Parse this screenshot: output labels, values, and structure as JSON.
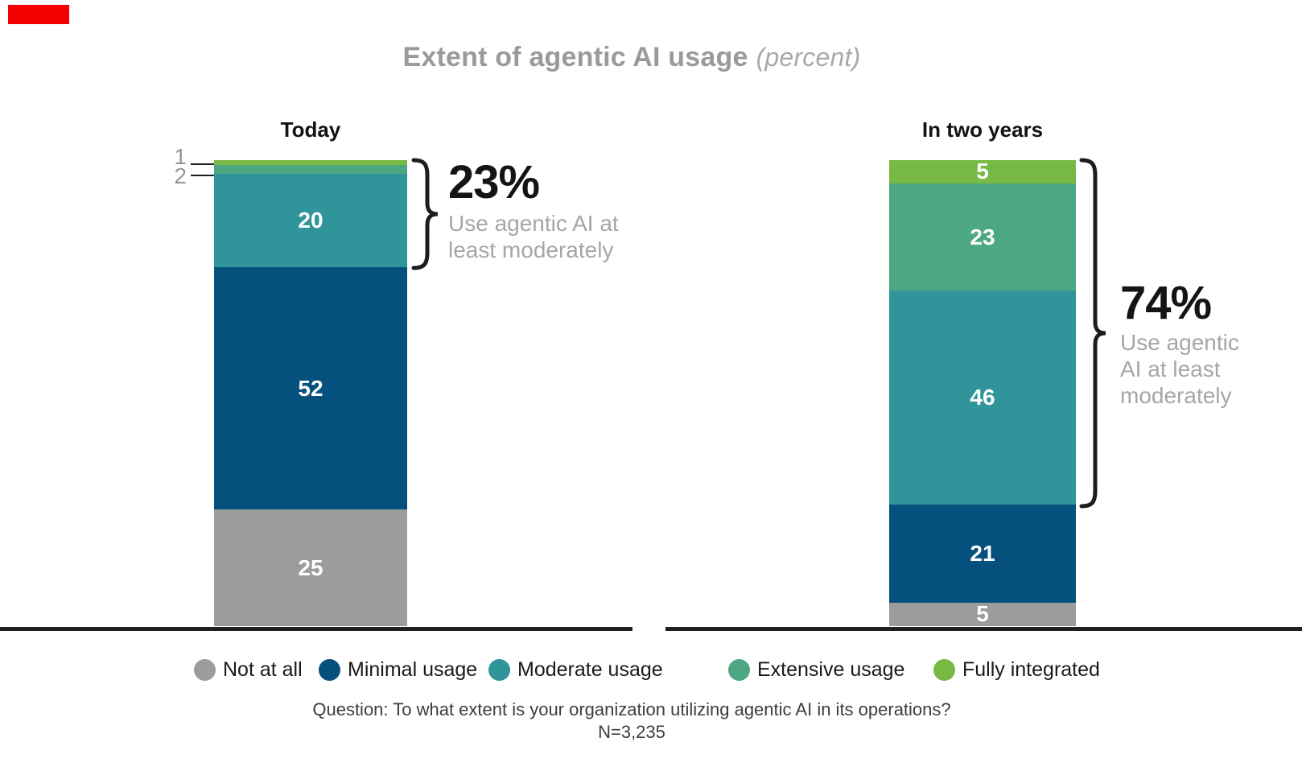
{
  "accent": {
    "color": "#f30000"
  },
  "title": {
    "main": "Extent of agentic AI usage",
    "suffix": "(percent)"
  },
  "chart_data": {
    "type": "bar",
    "subtype": "stacked-column",
    "unit": "percent",
    "stacked": true,
    "ylim": [
      0,
      100
    ],
    "grid": false,
    "axis": "baseline-only",
    "data_labels": "inside-white",
    "legend_position": "bottom",
    "categories": [
      "Today",
      "In two years"
    ],
    "series": [
      {
        "name": "Not at all",
        "key": "not_at_all",
        "color": "#9b9c9e",
        "values": [
          25,
          5
        ]
      },
      {
        "name": "Minimal usage",
        "key": "minimal",
        "color": "#05507d",
        "values": [
          52,
          21
        ]
      },
      {
        "name": "Moderate usage",
        "key": "moderate",
        "color": "#2f959b",
        "values": [
          20,
          46
        ]
      },
      {
        "name": "Extensive usage",
        "key": "extensive",
        "color": "#4ea783",
        "values": [
          2,
          23
        ]
      },
      {
        "name": "Fully integrated",
        "key": "fully_integrated",
        "color": "#77b943",
        "values": [
          1,
          5
        ]
      }
    ],
    "annotations": [
      {
        "bar": "Today",
        "value": "23%",
        "note": "Use agentic AI at least moderately",
        "covers": "moderate + extensive + fully integrated"
      },
      {
        "bar": "In two years",
        "value": "74%",
        "note": "Use agentic AI at least moderately",
        "covers": "moderate + extensive + fully integrated"
      }
    ]
  },
  "footer": {
    "question": "Question: To what extent is your organization utilizing agentic AI in its operations?",
    "sample_size": "N=3,235"
  }
}
